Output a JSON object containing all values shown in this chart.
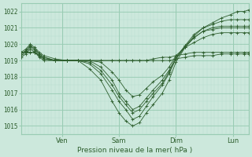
{
  "xlabel": "Pression niveau de la mer( hPa )",
  "bg_color": "#cce8dc",
  "line_color": "#2d5e2d",
  "grid_major_color": "#99ccb3",
  "grid_minor_color": "#b8ddd0",
  "ylim": [
    1014.5,
    1022.5
  ],
  "xlim": [
    0,
    1
  ],
  "yticks": [
    1015,
    1016,
    1017,
    1018,
    1019,
    1020,
    1021,
    1022
  ],
  "xtick_pos": [
    0.18,
    0.43,
    0.68,
    0.93
  ],
  "xtick_labels": [
    "Ven",
    "Sam",
    "Dim",
    "Lun"
  ],
  "series": [
    [
      0.0,
      1019.5,
      0.02,
      1019.7,
      0.04,
      1020.0,
      0.06,
      1019.8,
      0.08,
      1019.5,
      0.1,
      1019.3,
      0.15,
      1019.1,
      0.2,
      1019.0,
      0.25,
      1019.0,
      0.3,
      1018.5,
      0.35,
      1017.8,
      0.4,
      1016.5,
      0.43,
      1015.8,
      0.46,
      1015.3,
      0.49,
      1015.0,
      0.52,
      1015.2,
      0.55,
      1015.8,
      0.58,
      1016.3,
      0.62,
      1017.0,
      0.65,
      1017.8,
      0.68,
      1018.9,
      0.72,
      1019.8,
      0.76,
      1020.5,
      0.8,
      1021.0,
      0.84,
      1021.3,
      0.88,
      1021.6,
      0.92,
      1021.8,
      0.95,
      1022.0,
      0.98,
      1022.0,
      1.0,
      1022.1
    ],
    [
      0.0,
      1019.4,
      0.02,
      1019.6,
      0.04,
      1019.9,
      0.06,
      1019.7,
      0.08,
      1019.4,
      0.1,
      1019.2,
      0.15,
      1019.0,
      0.2,
      1019.0,
      0.25,
      1019.0,
      0.3,
      1018.8,
      0.35,
      1018.2,
      0.4,
      1017.2,
      0.43,
      1016.5,
      0.46,
      1016.0,
      0.49,
      1015.4,
      0.52,
      1015.6,
      0.55,
      1016.2,
      0.58,
      1016.8,
      0.62,
      1017.5,
      0.65,
      1018.2,
      0.68,
      1019.1,
      0.72,
      1019.9,
      0.76,
      1020.6,
      0.8,
      1021.0,
      0.84,
      1021.2,
      0.88,
      1021.4,
      0.92,
      1021.5,
      0.95,
      1021.5,
      0.98,
      1021.5,
      1.0,
      1021.5
    ],
    [
      0.0,
      1019.3,
      0.02,
      1019.5,
      0.04,
      1019.8,
      0.06,
      1019.6,
      0.08,
      1019.3,
      0.1,
      1019.1,
      0.15,
      1019.0,
      0.2,
      1019.0,
      0.25,
      1019.0,
      0.3,
      1019.0,
      0.35,
      1018.6,
      0.4,
      1017.8,
      0.43,
      1017.0,
      0.46,
      1016.5,
      0.49,
      1016.0,
      0.52,
      1016.2,
      0.55,
      1016.7,
      0.58,
      1017.2,
      0.62,
      1017.8,
      0.65,
      1018.4,
      0.68,
      1019.2,
      0.72,
      1019.9,
      0.76,
      1020.4,
      0.8,
      1020.8,
      0.84,
      1021.0,
      0.88,
      1021.1,
      0.92,
      1021.1,
      0.95,
      1021.1,
      0.98,
      1021.1,
      1.0,
      1021.1
    ],
    [
      0.0,
      1019.2,
      0.02,
      1019.4,
      0.04,
      1019.7,
      0.06,
      1019.5,
      0.08,
      1019.2,
      0.1,
      1019.0,
      0.15,
      1019.0,
      0.2,
      1019.0,
      0.25,
      1019.0,
      0.3,
      1019.0,
      0.35,
      1018.9,
      0.4,
      1018.3,
      0.43,
      1017.8,
      0.46,
      1017.2,
      0.49,
      1016.8,
      0.52,
      1016.9,
      0.55,
      1017.3,
      0.58,
      1017.7,
      0.62,
      1018.1,
      0.65,
      1018.6,
      0.68,
      1019.3,
      0.72,
      1019.8,
      0.76,
      1020.1,
      0.8,
      1020.4,
      0.84,
      1020.6,
      0.88,
      1020.7,
      0.92,
      1020.7,
      0.95,
      1020.7,
      0.98,
      1020.7,
      1.0,
      1020.7
    ],
    [
      0.0,
      1019.5,
      0.02,
      1019.5,
      0.04,
      1019.5,
      0.06,
      1019.5,
      0.08,
      1019.3,
      0.1,
      1019.1,
      0.15,
      1019.0,
      0.2,
      1019.0,
      0.25,
      1019.0,
      0.3,
      1019.0,
      0.35,
      1019.0,
      0.4,
      1019.0,
      0.43,
      1019.0,
      0.46,
      1019.0,
      0.49,
      1019.0,
      0.52,
      1019.0,
      0.55,
      1019.0,
      0.58,
      1019.0,
      0.62,
      1019.0,
      0.65,
      1019.0,
      0.68,
      1019.1,
      0.72,
      1019.2,
      0.76,
      1019.3,
      0.8,
      1019.3,
      0.84,
      1019.3,
      0.88,
      1019.4,
      0.92,
      1019.4,
      0.95,
      1019.4,
      0.98,
      1019.4,
      1.0,
      1019.4
    ],
    [
      0.0,
      1019.5,
      0.02,
      1019.5,
      0.04,
      1019.5,
      0.06,
      1019.5,
      0.08,
      1019.3,
      0.1,
      1019.1,
      0.15,
      1019.0,
      0.2,
      1019.0,
      0.25,
      1019.0,
      0.3,
      1019.0,
      0.35,
      1019.0,
      0.4,
      1019.0,
      0.43,
      1019.0,
      0.46,
      1019.0,
      0.49,
      1019.0,
      0.52,
      1019.0,
      0.55,
      1019.0,
      0.58,
      1019.1,
      0.62,
      1019.2,
      0.65,
      1019.2,
      0.68,
      1019.3,
      0.72,
      1019.4,
      0.76,
      1019.5,
      0.8,
      1019.5,
      0.84,
      1019.5,
      0.88,
      1019.5,
      0.92,
      1019.5,
      0.95,
      1019.5,
      0.98,
      1019.5,
      1.0,
      1019.5
    ],
    [
      0.0,
      1019.4,
      0.02,
      1019.6,
      0.04,
      1019.9,
      0.06,
      1019.7,
      0.08,
      1019.4,
      0.1,
      1019.2,
      0.15,
      1019.0,
      0.2,
      1019.0,
      0.25,
      1019.0,
      0.3,
      1018.9,
      0.35,
      1018.4,
      0.4,
      1017.5,
      0.43,
      1016.8,
      0.46,
      1016.3,
      0.49,
      1015.8,
      0.52,
      1016.0,
      0.55,
      1016.5,
      0.58,
      1017.0,
      0.62,
      1017.6,
      0.65,
      1018.3,
      0.68,
      1019.1,
      0.72,
      1019.8,
      0.76,
      1020.4,
      0.8,
      1020.8,
      0.84,
      1020.9,
      0.88,
      1021.0,
      0.92,
      1021.0,
      0.95,
      1021.0,
      0.98,
      1021.0,
      1.0,
      1021.0
    ]
  ]
}
